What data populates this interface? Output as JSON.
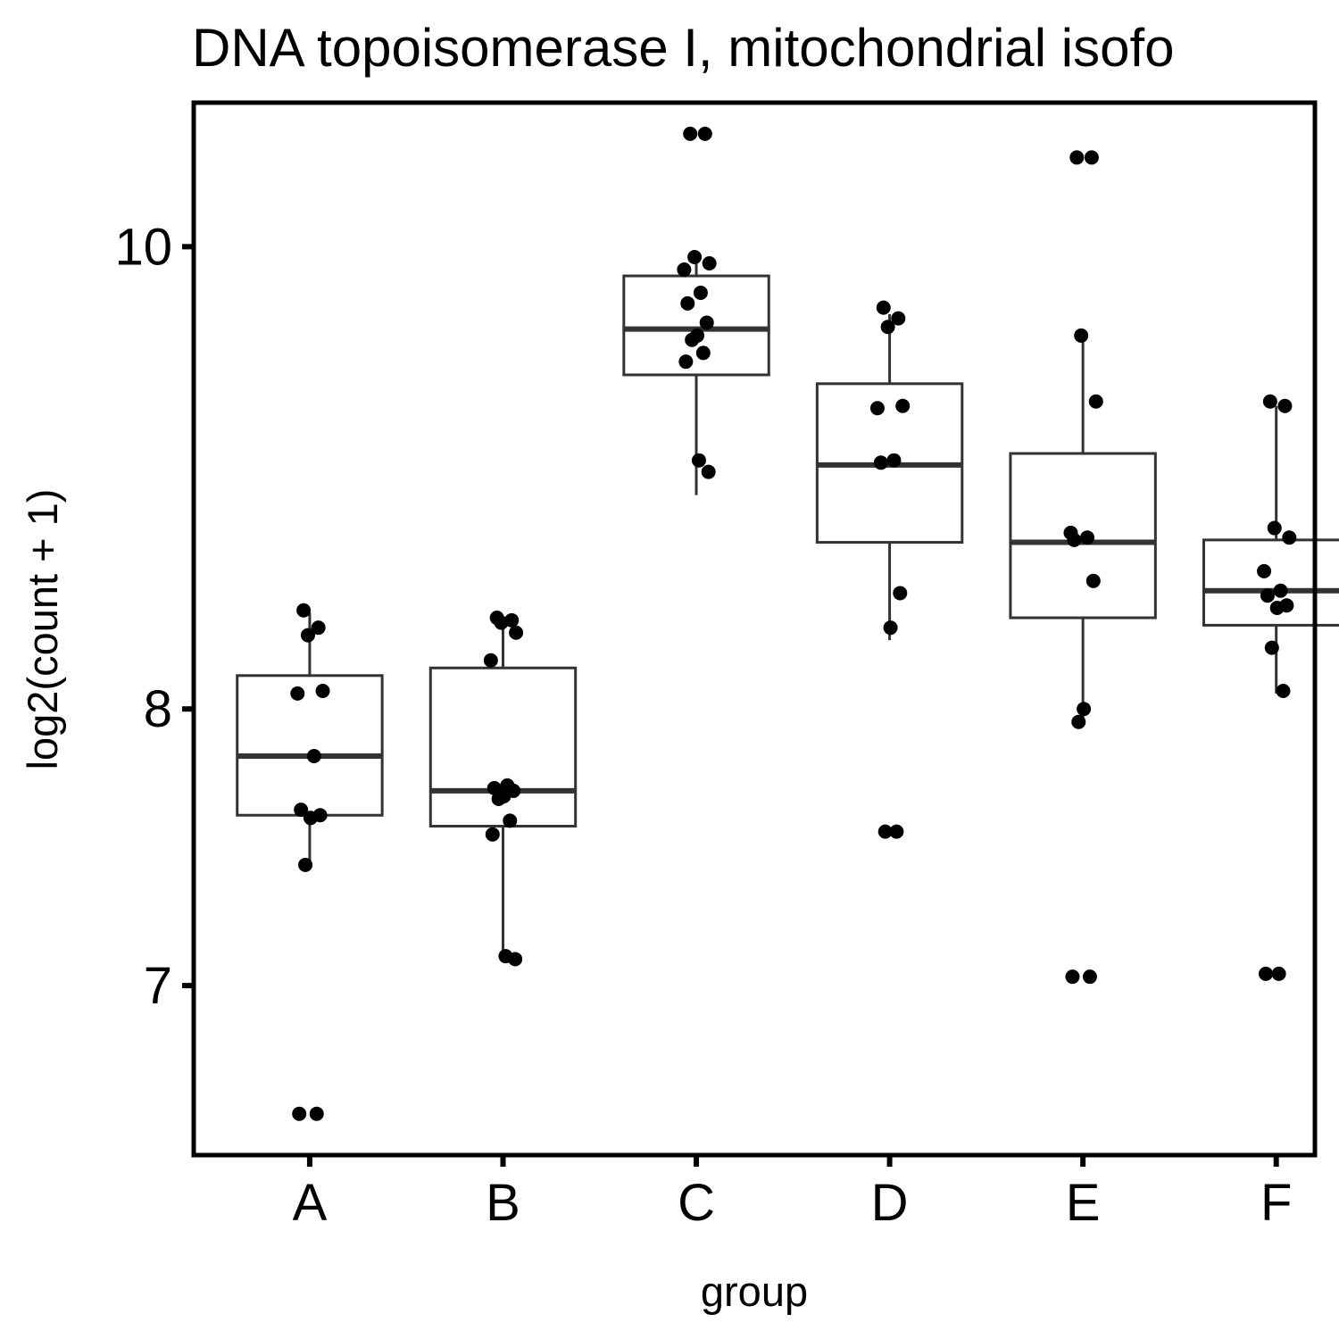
{
  "chart_data": {
    "type": "box",
    "title": "DNA topoisomerase I, mitochondrial isofo",
    "xlabel": "group",
    "ylabel": "log2(count + 1)",
    "y_scale": "log2",
    "ylim": [
      6.45,
      10.72
    ],
    "y_ticks": [
      7,
      8,
      10
    ],
    "y_tick_labels": [
      "7",
      "8",
      "10"
    ],
    "categories": [
      "A",
      "B",
      "C",
      "D",
      "E",
      "F"
    ],
    "colors": {
      "box_stroke": "#333333",
      "point": "#000000",
      "border": "#000000"
    },
    "boxes": [
      {
        "group": "A",
        "lower_whisker": 7.42,
        "q1": 7.6,
        "median": 7.82,
        "q3": 8.13,
        "upper_whisker": 8.38
      },
      {
        "group": "B",
        "lower_whisker": 7.09,
        "q1": 7.56,
        "median": 7.69,
        "q3": 8.16,
        "upper_whisker": 8.36
      },
      {
        "group": "C",
        "lower_whisker": 8.87,
        "q1": 9.4,
        "median": 9.61,
        "q3": 9.86,
        "upper_whisker": 9.95
      },
      {
        "group": "D",
        "lower_whisker": 8.27,
        "q1": 8.67,
        "median": 9.0,
        "q3": 9.36,
        "upper_whisker": 9.68
      },
      {
        "group": "E",
        "lower_whisker": 7.95,
        "q1": 8.36,
        "median": 8.67,
        "q3": 9.05,
        "upper_whisker": 9.58
      },
      {
        "group": "F",
        "lower_whisker": 8.06,
        "q1": 8.33,
        "median": 8.47,
        "q3": 8.68,
        "upper_whisker": 9.26
      }
    ],
    "points": [
      {
        "group": "A",
        "values": [
          8.39,
          8.32,
          8.29,
          8.07,
          8.06,
          7.82,
          7.62,
          7.6,
          7.59,
          7.42,
          6.58,
          6.58
        ]
      },
      {
        "group": "B",
        "values": [
          8.36,
          8.35,
          8.34,
          8.3,
          8.19,
          7.71,
          7.7,
          7.69,
          7.67,
          7.66,
          7.58,
          7.53,
          7.1,
          7.09
        ]
      },
      {
        "group": "C",
        "values": [
          10.56,
          10.56,
          9.95,
          9.92,
          9.89,
          9.78,
          9.73,
          9.64,
          9.58,
          9.56,
          9.5,
          9.46,
          9.02,
          8.97
        ]
      },
      {
        "group": "D",
        "values": [
          9.71,
          9.66,
          9.62,
          9.26,
          9.25,
          9.02,
          9.01,
          8.46,
          8.32,
          7.54,
          7.54
        ]
      },
      {
        "group": "E",
        "values": [
          10.44,
          10.44,
          9.58,
          9.28,
          8.71,
          8.69,
          8.68,
          8.51,
          8.0,
          7.95,
          7.03,
          7.03
        ]
      },
      {
        "group": "F",
        "values": [
          9.28,
          9.26,
          8.73,
          8.69,
          8.55,
          8.47,
          8.45,
          8.41,
          8.4,
          8.24,
          8.07,
          7.04,
          7.04
        ]
      }
    ]
  }
}
